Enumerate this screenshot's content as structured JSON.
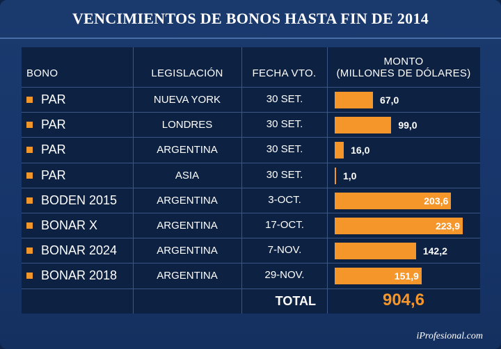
{
  "title": "VENCIMIENTOS DE BONOS HASTA FIN DE 2014",
  "headers": {
    "bono": "BONO",
    "legislacion": "LEGISLACIÓN",
    "fecha": "FECHA VTO.",
    "monto_line1": "MONTO",
    "monto_line2": "(MILLONES DE DÓLARES)"
  },
  "chart_data": {
    "type": "bar",
    "title": "VENCIMIENTOS DE BONOS HASTA FIN DE 2014",
    "categories": [
      "PAR",
      "PAR",
      "PAR",
      "PAR",
      "BODEN 2015",
      "BONAR X",
      "BONAR 2024",
      "BONAR 2018"
    ],
    "series": [
      {
        "name": "MONTO (MILLONES DE DÓLARES)",
        "values": [
          67.0,
          99.0,
          16.0,
          1.0,
          203.6,
          223.9,
          142.2,
          151.9
        ]
      }
    ],
    "xlim": [
      0,
      223.9
    ],
    "rows": [
      {
        "bono": "PAR",
        "legislacion": "NUEVA YORK",
        "fecha": "30 SET.",
        "monto": 67.0,
        "monto_label": "67,0"
      },
      {
        "bono": "PAR",
        "legislacion": "LONDRES",
        "fecha": "30 SET.",
        "monto": 99.0,
        "monto_label": "99,0"
      },
      {
        "bono": "PAR",
        "legislacion": "ARGENTINA",
        "fecha": "30 SET.",
        "monto": 16.0,
        "monto_label": "16,0"
      },
      {
        "bono": "PAR",
        "legislacion": "ASIA",
        "fecha": "30 SET.",
        "monto": 1.0,
        "monto_label": "1,0"
      },
      {
        "bono": "BODEN 2015",
        "legislacion": "ARGENTINA",
        "fecha": "3-OCT.",
        "monto": 203.6,
        "monto_label": "203,6"
      },
      {
        "bono": "BONAR X",
        "legislacion": "ARGENTINA",
        "fecha": "17-OCT.",
        "monto": 223.9,
        "monto_label": "223,9"
      },
      {
        "bono": "BONAR 2024",
        "legislacion": "ARGENTINA",
        "fecha": "7-NOV.",
        "monto": 142.2,
        "monto_label": "142,2"
      },
      {
        "bono": "BONAR 2018",
        "legislacion": "ARGENTINA",
        "fecha": "29-NOV.",
        "monto": 151.9,
        "monto_label": "151,9"
      }
    ],
    "total_label": "TOTAL",
    "total_value": "904,6",
    "colors": {
      "bar": "#f5962a",
      "background": "#0d2142",
      "frame": "#17356a"
    }
  },
  "brand": "iProfesional.com"
}
